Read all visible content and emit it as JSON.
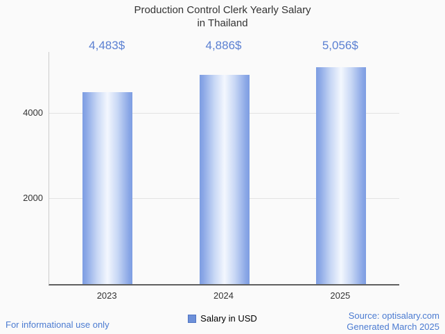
{
  "title": {
    "line1": "Production Control Clerk Yearly Salary",
    "line2": "in Thailand"
  },
  "chart_data": {
    "type": "bar",
    "title": "Production Control Clerk Yearly Salary in Thailand",
    "categories": [
      "2023",
      "2024",
      "2025"
    ],
    "values": [
      4483,
      4886,
      5056
    ],
    "value_labels": [
      "4,483$",
      "4,886$",
      "5,056$"
    ],
    "xlabel": "",
    "ylabel": "",
    "ylim": [
      0,
      5420
    ],
    "yticks": [
      2000,
      4000
    ],
    "grid": true,
    "legend_position": "bottom",
    "legend": [
      {
        "label": "Salary in USD",
        "color": "#6d90d9"
      }
    ],
    "bar_gradient": [
      "#7d9de2",
      "#f3f7fe",
      "#7d9de2"
    ]
  },
  "footer": {
    "left": "For informational use only",
    "source": "Source: optisalary.com",
    "generated": "Generated March 2025"
  },
  "colors": {
    "background": "#fafafa",
    "title_text": "#333333",
    "value_label": "#5b80d2",
    "footer_text": "#4b7bd1",
    "axis_line": "#5f5f5f",
    "y_axis_line": "#cccccc",
    "gridline": "#e3e3e3",
    "tick_text": "#333333"
  }
}
